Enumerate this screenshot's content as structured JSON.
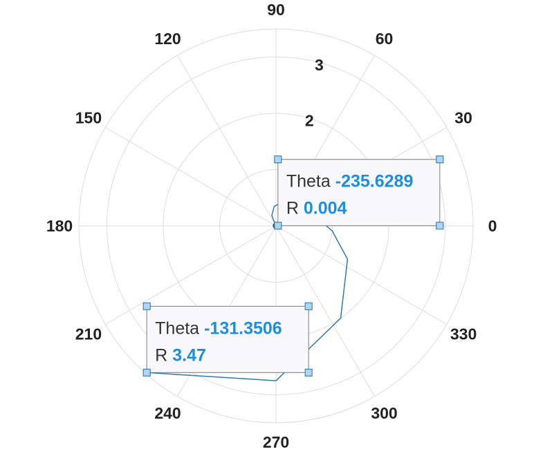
{
  "chart_data": {
    "type": "line",
    "coordinate_system": "polar",
    "theta_unit": "degrees",
    "theta_ticks": [
      "0",
      "30",
      "60",
      "90",
      "120",
      "150",
      "180",
      "210",
      "240",
      "270",
      "300",
      "330"
    ],
    "r_ticks": [
      "2",
      "3"
    ],
    "rlim": [
      0,
      3.5
    ],
    "grid": true,
    "series": [
      {
        "theta": [
          124.4,
          112,
          95,
          72,
          28,
          -5,
          -25,
          -55,
          -90,
          -131.35
        ],
        "r": [
          0.004,
          0.2,
          0.35,
          0.45,
          0.62,
          1.0,
          1.4,
          2.0,
          2.75,
          3.47
        ],
        "color": "#2a7ab0"
      }
    ],
    "datatips": [
      {
        "theta_label": "Theta",
        "theta_value": "-235.6289",
        "r_label": "R",
        "r_value": "0.004"
      },
      {
        "theta_label": "Theta",
        "theta_value": "-131.3506",
        "r_label": "R",
        "r_value": "3.47"
      }
    ]
  },
  "colors": {
    "grid": "#dcdcdc",
    "tick_text": "#222222",
    "series": "#2a7ab0",
    "tip_value": "#1a8fe0",
    "tip_border": "#7a7a7a",
    "tip_fill": "#f8f8fc",
    "handle_fill": "#aed6f1",
    "handle_stroke": "#1f6fa8"
  }
}
